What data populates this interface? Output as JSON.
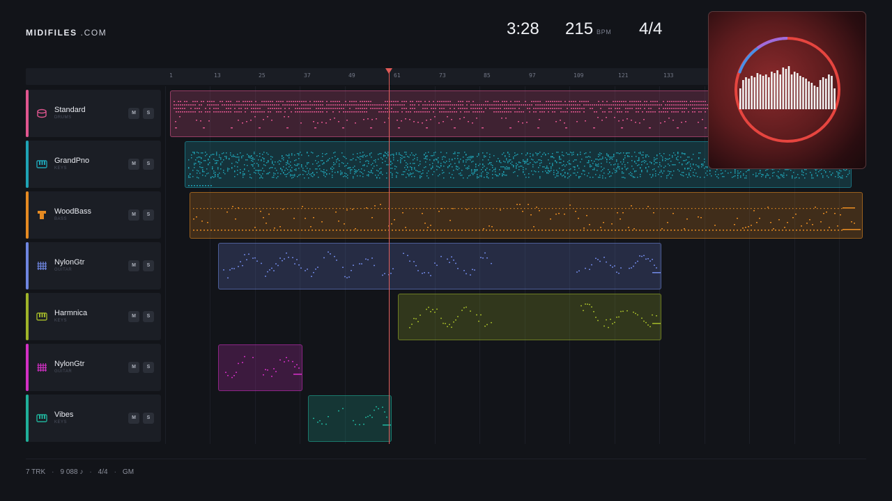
{
  "brand": {
    "bold": "MIDIFILES",
    "light": ".COM"
  },
  "header": {
    "time": "3:28",
    "bpm": "215",
    "bpm_unit": "BPM",
    "meter": "4/4"
  },
  "ruler": {
    "ticks": [
      "1",
      "13",
      "25",
      "37",
      "49",
      "61",
      "73",
      "85",
      "97",
      "109",
      "121",
      "133"
    ]
  },
  "tracks": [
    {
      "name": "Standard",
      "category": "DRUMS",
      "color": "#e0568f",
      "icon": "drum-icon",
      "mute": "M",
      "solo": "S"
    },
    {
      "name": "GrandPno",
      "category": "KEYS",
      "color": "#1fa3b5",
      "icon": "piano-keys-icon",
      "mute": "M",
      "solo": "S"
    },
    {
      "name": "WoodBass",
      "category": "BASS",
      "color": "#e58a22",
      "icon": "bass-amp-icon",
      "mute": "M",
      "solo": "S"
    },
    {
      "name": "NylonGtr",
      "category": "GUITAR",
      "color": "#6f86e0",
      "icon": "guitar-fretboard-icon",
      "mute": "M",
      "solo": "S"
    },
    {
      "name": "Harmnica",
      "category": "KEYS",
      "color": "#9fb429",
      "icon": "piano-keys-icon",
      "mute": "M",
      "solo": "S"
    },
    {
      "name": "NylonGtr",
      "category": "GUITAR",
      "color": "#d230c4",
      "icon": "guitar-fretboard-icon",
      "mute": "M",
      "solo": "S"
    },
    {
      "name": "Vibes",
      "category": "KEYS",
      "color": "#20b09a",
      "icon": "piano-keys-icon",
      "mute": "M",
      "solo": "S"
    }
  ],
  "footer": {
    "tracks": "7 TRK",
    "notes": "9 088 ♪",
    "meter": "4/4",
    "standard": "GM"
  }
}
